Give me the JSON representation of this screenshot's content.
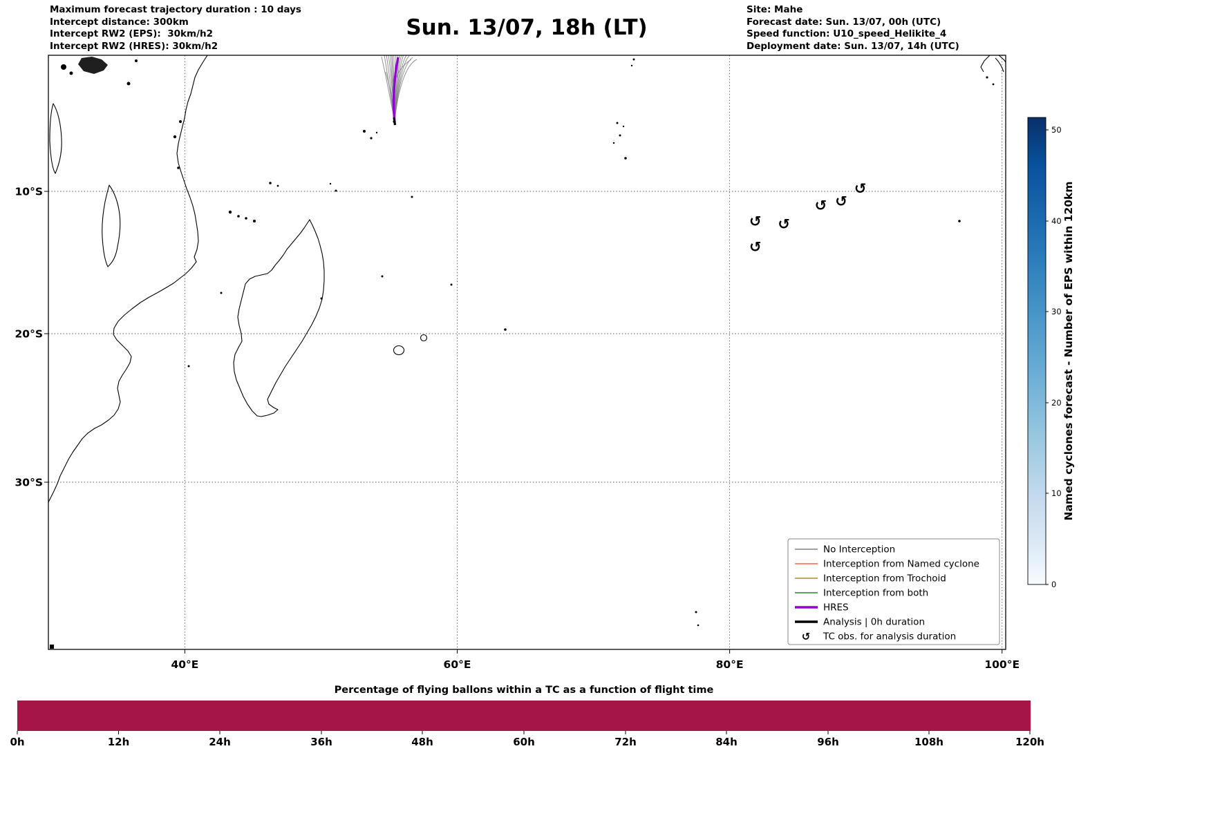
{
  "header": {
    "left_lines": [
      "Maximum forecast trajectory duration : 10 days",
      "Intercept distance: 300km",
      "Intercept RW2 (EPS):  30km/h2",
      "Intercept RW2 (HRES): 30km/h2"
    ],
    "title": "Sun. 13/07, 18h (LT)",
    "right_lines": [
      "Site: Mahe",
      "Forecast date: Sun. 13/07, 00h (UTC)",
      "Speed function: U10_speed_Helikite_4",
      "Deployment date: Sun. 13/07, 14h (UTC)"
    ]
  },
  "map": {
    "x_ticks": [
      {
        "label": "40°E"
      },
      {
        "label": "60°E"
      },
      {
        "label": "80°E"
      },
      {
        "label": "100°E"
      }
    ],
    "y_ticks": [
      {
        "label": "10°S"
      },
      {
        "label": "20°S"
      },
      {
        "label": "30°S"
      }
    ],
    "tc_symbol": "↺",
    "tc_obs": [
      {
        "lon": 81.9,
        "lat": 12.1
      },
      {
        "lon": 84.0,
        "lat": 12.3
      },
      {
        "lon": 86.7,
        "lat": 11.0
      },
      {
        "lon": 88.2,
        "lat": 10.7
      },
      {
        "lon": 89.6,
        "lat": 9.8
      },
      {
        "lon": 81.9,
        "lat": 13.9
      }
    ],
    "trajectory_origin": {
      "site": "Mahe",
      "lon_e": 55.5,
      "lat_s": 4.8
    }
  },
  "legend": {
    "items": [
      {
        "label": "No Interception",
        "color": "#808080"
      },
      {
        "label": "Interception from Named cyclone",
        "color": "#ff6347"
      },
      {
        "label": "Interception from Trochoid",
        "color": "#ab8f24"
      },
      {
        "label": "Interception from both",
        "color": "#228b22"
      },
      {
        "label": "HRES",
        "color": "#9400d3"
      },
      {
        "label": "Analysis | 0h duration",
        "color": "#000000"
      },
      {
        "label": "TC obs. for analysis duration",
        "symbol": "↺"
      }
    ]
  },
  "colorbar": {
    "label": "Named cyclones forecast - Number of EPS within 120km",
    "ticks": [
      0,
      10,
      20,
      30,
      40,
      50
    ],
    "vmin": 0,
    "vmax": 51,
    "color_low": "#f7fbff",
    "color_high": "#08306b"
  },
  "bottom_chart": {
    "title": "Percentage of flying ballons within a TC as a function of flight time",
    "tick_labels": [
      "0h",
      "12h",
      "24h",
      "36h",
      "48h",
      "60h",
      "72h",
      "84h",
      "96h",
      "108h",
      "120h"
    ],
    "bar_color": "#a51547"
  },
  "chart_data": [
    {
      "type": "line",
      "title": "Sun. 13/07, 18h (LT)",
      "subtitle": "Balloon forecast trajectories launched from Mahe over the Indian Ocean",
      "x_ticks": [
        "40°E",
        "60°E",
        "80°E",
        "100°E"
      ],
      "y_ticks": [
        "10°S",
        "20°S",
        "30°S"
      ],
      "x_range_deg_e": [
        30,
        100
      ],
      "y_range_deg_s": [
        0,
        41
      ],
      "grid": true,
      "legend_position": "lower right",
      "series": [
        {
          "name": "No Interception (EPS trajectory bundle)",
          "color": "#808080",
          "start_lon_e_lat_s": [
            55.5,
            4.8
          ],
          "note": "dense bundle of thin gray trajectories heading north, exiting the top of the map between ~54.5°E and ~57.5°E"
        },
        {
          "name": "HRES",
          "color": "#9400d3",
          "start_lon_e_lat_s": [
            55.5,
            4.8
          ],
          "note": "single thick purple trajectory inside the bundle"
        },
        {
          "name": "Analysis | 0h duration",
          "color": "#000000",
          "note": "short thick black segment at the deployment point"
        }
      ],
      "tc_observations_lon_e_lat_s": [
        [
          81.9,
          12.1
        ],
        [
          84.0,
          12.3
        ],
        [
          86.7,
          11.0
        ],
        [
          88.2,
          10.7
        ],
        [
          89.6,
          9.8
        ],
        [
          81.9,
          13.9
        ]
      ],
      "colorbar": {
        "label": "Named cyclones forecast - Number of EPS within 120km",
        "ticks": [
          0,
          10,
          20,
          30,
          40,
          50
        ],
        "vmin": 0,
        "vmax": 51,
        "colormap": "Blues (light at 0, dark at max)"
      }
    },
    {
      "type": "bar",
      "title": "Percentage of flying ballons within a TC as a function of flight time",
      "categories": [
        "0h",
        "12h",
        "24h",
        "36h",
        "48h",
        "60h",
        "72h",
        "84h",
        "96h",
        "108h",
        "120h"
      ],
      "values": [
        100,
        100,
        100,
        100,
        100,
        100,
        100,
        100,
        100,
        100,
        100
      ],
      "bar_color": "#a51547",
      "note": "single continuous full-height bar spanning the whole 0h–120h axis; no y-axis shown"
    }
  ]
}
